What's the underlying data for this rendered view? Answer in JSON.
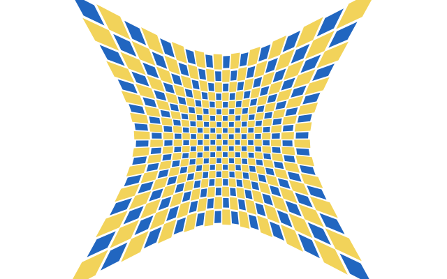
{
  "figure": {
    "description_free": true,
    "pattern": "checkerboard",
    "distortion": "pincushion",
    "colors": {
      "background": "#ffffff",
      "blue": "#2166c0",
      "yellow": "#f2d35a"
    },
    "grid": {
      "rows": 20,
      "cols": 20
    }
  }
}
